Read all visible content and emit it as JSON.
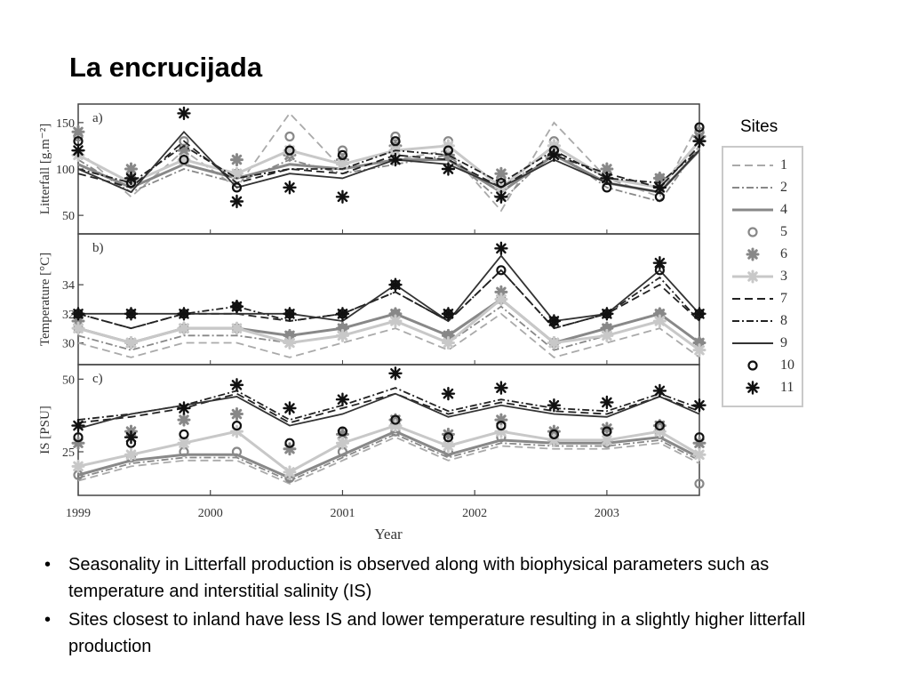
{
  "slide": {
    "title": "La encrucijada",
    "bullets": [
      "Seasonality in Litterfall production is observed along with biophysical parameters such as temperature and interstitial salinity (IS)",
      "Sites closest to inland have less IS and lower temperature resulting in a slightly higher litterfall production"
    ]
  },
  "chart_data": {
    "type": "line",
    "xlabel": "Year",
    "x_ticks": [
      "1999",
      "2000",
      "2001",
      "2002",
      "2003"
    ],
    "x_tick_values": [
      1999.0,
      2000.0,
      2001.0,
      2002.0,
      2003.0
    ],
    "xlim": [
      1999.0,
      2003.7
    ],
    "x": [
      1999.0,
      1999.4,
      1999.8,
      2000.2,
      2000.6,
      2001.0,
      2001.4,
      2001.8,
      2002.2,
      2002.6,
      2003.0,
      2003.4,
      2003.7
    ],
    "legend_title": "Sites",
    "legend_entries": [
      "1",
      "2",
      "4",
      "5",
      "6",
      "3",
      "7",
      "8",
      "9",
      "10",
      "11"
    ],
    "panels": [
      {
        "label": "a)",
        "ylabel": "Litterfall [g.m⁻²]",
        "yticks": [
          50,
          100,
          150
        ],
        "ylim": [
          30,
          170
        ],
        "series": [
          {
            "name": "1",
            "values": [
              120,
              70,
              120,
              80,
              160,
              100,
              110,
              120,
              55,
              150,
              90,
              70,
              150
            ]
          },
          {
            "name": "2",
            "values": [
              110,
              75,
              100,
              85,
              110,
              95,
              105,
              115,
              65,
              120,
              80,
              65,
              125
            ]
          },
          {
            "name": "4",
            "values": [
              105,
              80,
              105,
              90,
              105,
              100,
              110,
              110,
              75,
              115,
              85,
              75,
              120
            ]
          },
          {
            "name": "5",
            "values": [
              135,
              90,
              130,
              95,
              135,
              120,
              135,
              130,
              90,
              130,
              95,
              90,
              140
            ]
          },
          {
            "name": "6",
            "values": [
              140,
              100,
              120,
              110,
              115,
              110,
              125,
              115,
              95,
              125,
              100,
              90,
              135
            ]
          },
          {
            "name": "3",
            "values": [
              115,
              85,
              110,
              95,
              120,
              105,
              120,
              125,
              80,
              125,
              90,
              80,
              130
            ]
          },
          {
            "name": "7",
            "values": [
              95,
              80,
              130,
              85,
              100,
              95,
              115,
              110,
              80,
              115,
              95,
              80,
              125
            ]
          },
          {
            "name": "8",
            "values": [
              100,
              85,
              125,
              90,
              100,
              100,
              120,
              115,
              85,
              120,
              90,
              85,
              120
            ]
          },
          {
            "name": "9",
            "values": [
              100,
              75,
              140,
              80,
              95,
              90,
              110,
              105,
              80,
              110,
              85,
              75,
              120
            ]
          },
          {
            "name": "10",
            "values": [
              130,
              85,
              110,
              80,
              120,
              115,
              130,
              120,
              85,
              120,
              80,
              70,
              145
            ]
          },
          {
            "name": "11",
            "values": [
              120,
              90,
              160,
              65,
              80,
              70,
              110,
              100,
              70,
              115,
              90,
              80,
              130
            ]
          }
        ]
      },
      {
        "label": "b)",
        "ylabel": "Temperature [°C]",
        "yticks": [
          30,
          32,
          34
        ],
        "ylim": [
          28.5,
          37.5
        ],
        "series": [
          {
            "name": "1",
            "values": [
              30,
              29,
              30,
              30,
              29,
              30,
              31,
              29.5,
              32,
              29,
              30,
              31,
              29
            ]
          },
          {
            "name": "2",
            "values": [
              30.5,
              29.5,
              30.5,
              30.5,
              30,
              30.5,
              31.5,
              30,
              32.5,
              29.5,
              30.5,
              31.5,
              29.5
            ]
          },
          {
            "name": "4",
            "values": [
              31,
              30,
              31,
              31,
              30.5,
              31,
              32,
              30.5,
              33,
              30,
              31,
              32,
              30
            ]
          },
          {
            "name": "5",
            "values": [
              31,
              30,
              31,
              31,
              30.5,
              31,
              32,
              30.5,
              33,
              30,
              31,
              32,
              30
            ]
          },
          {
            "name": "6",
            "values": [
              31.5,
              30,
              31,
              32.5,
              30.5,
              31,
              32,
              30.5,
              33.5,
              30,
              31,
              32,
              30
            ]
          },
          {
            "name": "3",
            "values": [
              31,
              30,
              31,
              31,
              30,
              30.5,
              31.5,
              30,
              33,
              30,
              30.5,
              31.5,
              29.5
            ]
          },
          {
            "name": "7",
            "values": [
              32,
              31,
              32,
              32,
              31.5,
              32,
              33.5,
              31.5,
              35,
              31,
              32,
              34,
              31.5
            ]
          },
          {
            "name": "8",
            "values": [
              32,
              31,
              32,
              32.5,
              31.5,
              32,
              33.5,
              31.5,
              35,
              31,
              32,
              34.5,
              31.5
            ]
          },
          {
            "name": "9",
            "values": [
              32,
              32,
              32,
              32,
              32,
              31.5,
              34,
              31.5,
              36,
              31.5,
              32,
              35,
              32
            ]
          },
          {
            "name": "10",
            "values": [
              32,
              32,
              32,
              32.5,
              32,
              32,
              34,
              32,
              35,
              31.5,
              32,
              35,
              32
            ]
          },
          {
            "name": "11",
            "values": [
              32,
              32,
              32,
              32.5,
              32,
              32,
              34,
              32,
              36.5,
              31.5,
              32,
              35.5,
              32
            ]
          }
        ]
      },
      {
        "label": "c)",
        "ylabel": "IS [PSU]",
        "yticks": [
          25,
          50
        ],
        "ylim": [
          10,
          55
        ],
        "series": [
          {
            "name": "1",
            "values": [
              15,
              20,
              22,
              22,
              14,
              22,
              30,
              22,
              27,
              26,
              26,
              28,
              21
            ]
          },
          {
            "name": "2",
            "values": [
              16,
              21,
              23,
              23,
              15,
              23,
              31,
              23,
              28,
              27,
              27,
              29,
              22
            ]
          },
          {
            "name": "4",
            "values": [
              17,
              22,
              24,
              24,
              16,
              24,
              32,
              24,
              29,
              28,
              28,
              30,
              23
            ]
          },
          {
            "name": "5",
            "values": [
              17,
              23,
              25,
              25,
              16,
              25,
              32,
              25,
              30,
              29,
              28,
              31,
              14
            ]
          },
          {
            "name": "6",
            "values": [
              28,
              32,
              36,
              38,
              26,
              31,
              36,
              31,
              36,
              32,
              33,
              34,
              28
            ]
          },
          {
            "name": "3",
            "values": [
              20,
              24,
              28,
              32,
              18,
              28,
              34,
              27,
              32,
              29,
              29,
              32,
              24
            ]
          },
          {
            "name": "7",
            "values": [
              35,
              37,
              40,
              45,
              35,
              40,
              45,
              38,
              42,
              39,
              38,
              44,
              39
            ]
          },
          {
            "name": "8",
            "values": [
              36,
              38,
              41,
              46,
              36,
              41,
              47,
              39,
              43,
              40,
              39,
              45,
              40
            ]
          },
          {
            "name": "9",
            "values": [
              33,
              38,
              41,
              44,
              34,
              38,
              45,
              37,
              41,
              38,
              37,
              44,
              38
            ]
          },
          {
            "name": "10",
            "values": [
              30,
              28,
              31,
              34,
              28,
              32,
              36,
              30,
              34,
              31,
              32,
              34,
              30
            ]
          },
          {
            "name": "11",
            "values": [
              34,
              30,
              40,
              48,
              40,
              43,
              52,
              45,
              47,
              41,
              42,
              46,
              41
            ]
          }
        ]
      }
    ]
  },
  "legend_styles": [
    {
      "name": "1",
      "line": "dash",
      "marker": "none",
      "color": "#aaaaaa"
    },
    {
      "name": "2",
      "line": "dashdot",
      "marker": "none",
      "color": "#888888"
    },
    {
      "name": "4",
      "line": "solid",
      "marker": "none",
      "color": "#888888"
    },
    {
      "name": "5",
      "line": "none",
      "marker": "circle",
      "color": "#888888"
    },
    {
      "name": "6",
      "line": "none",
      "marker": "star",
      "color": "#888888"
    },
    {
      "name": "3",
      "line": "solid",
      "marker": "star",
      "color": "#c8c8c8"
    },
    {
      "name": "7",
      "line": "dash",
      "marker": "none",
      "color": "#222222"
    },
    {
      "name": "8",
      "line": "dashdot",
      "marker": "none",
      "color": "#222222"
    },
    {
      "name": "9",
      "line": "solid",
      "marker": "none",
      "color": "#333333"
    },
    {
      "name": "10",
      "line": "none",
      "marker": "circle",
      "color": "#111111"
    },
    {
      "name": "11",
      "line": "none",
      "marker": "asterisk",
      "color": "#111111"
    }
  ]
}
